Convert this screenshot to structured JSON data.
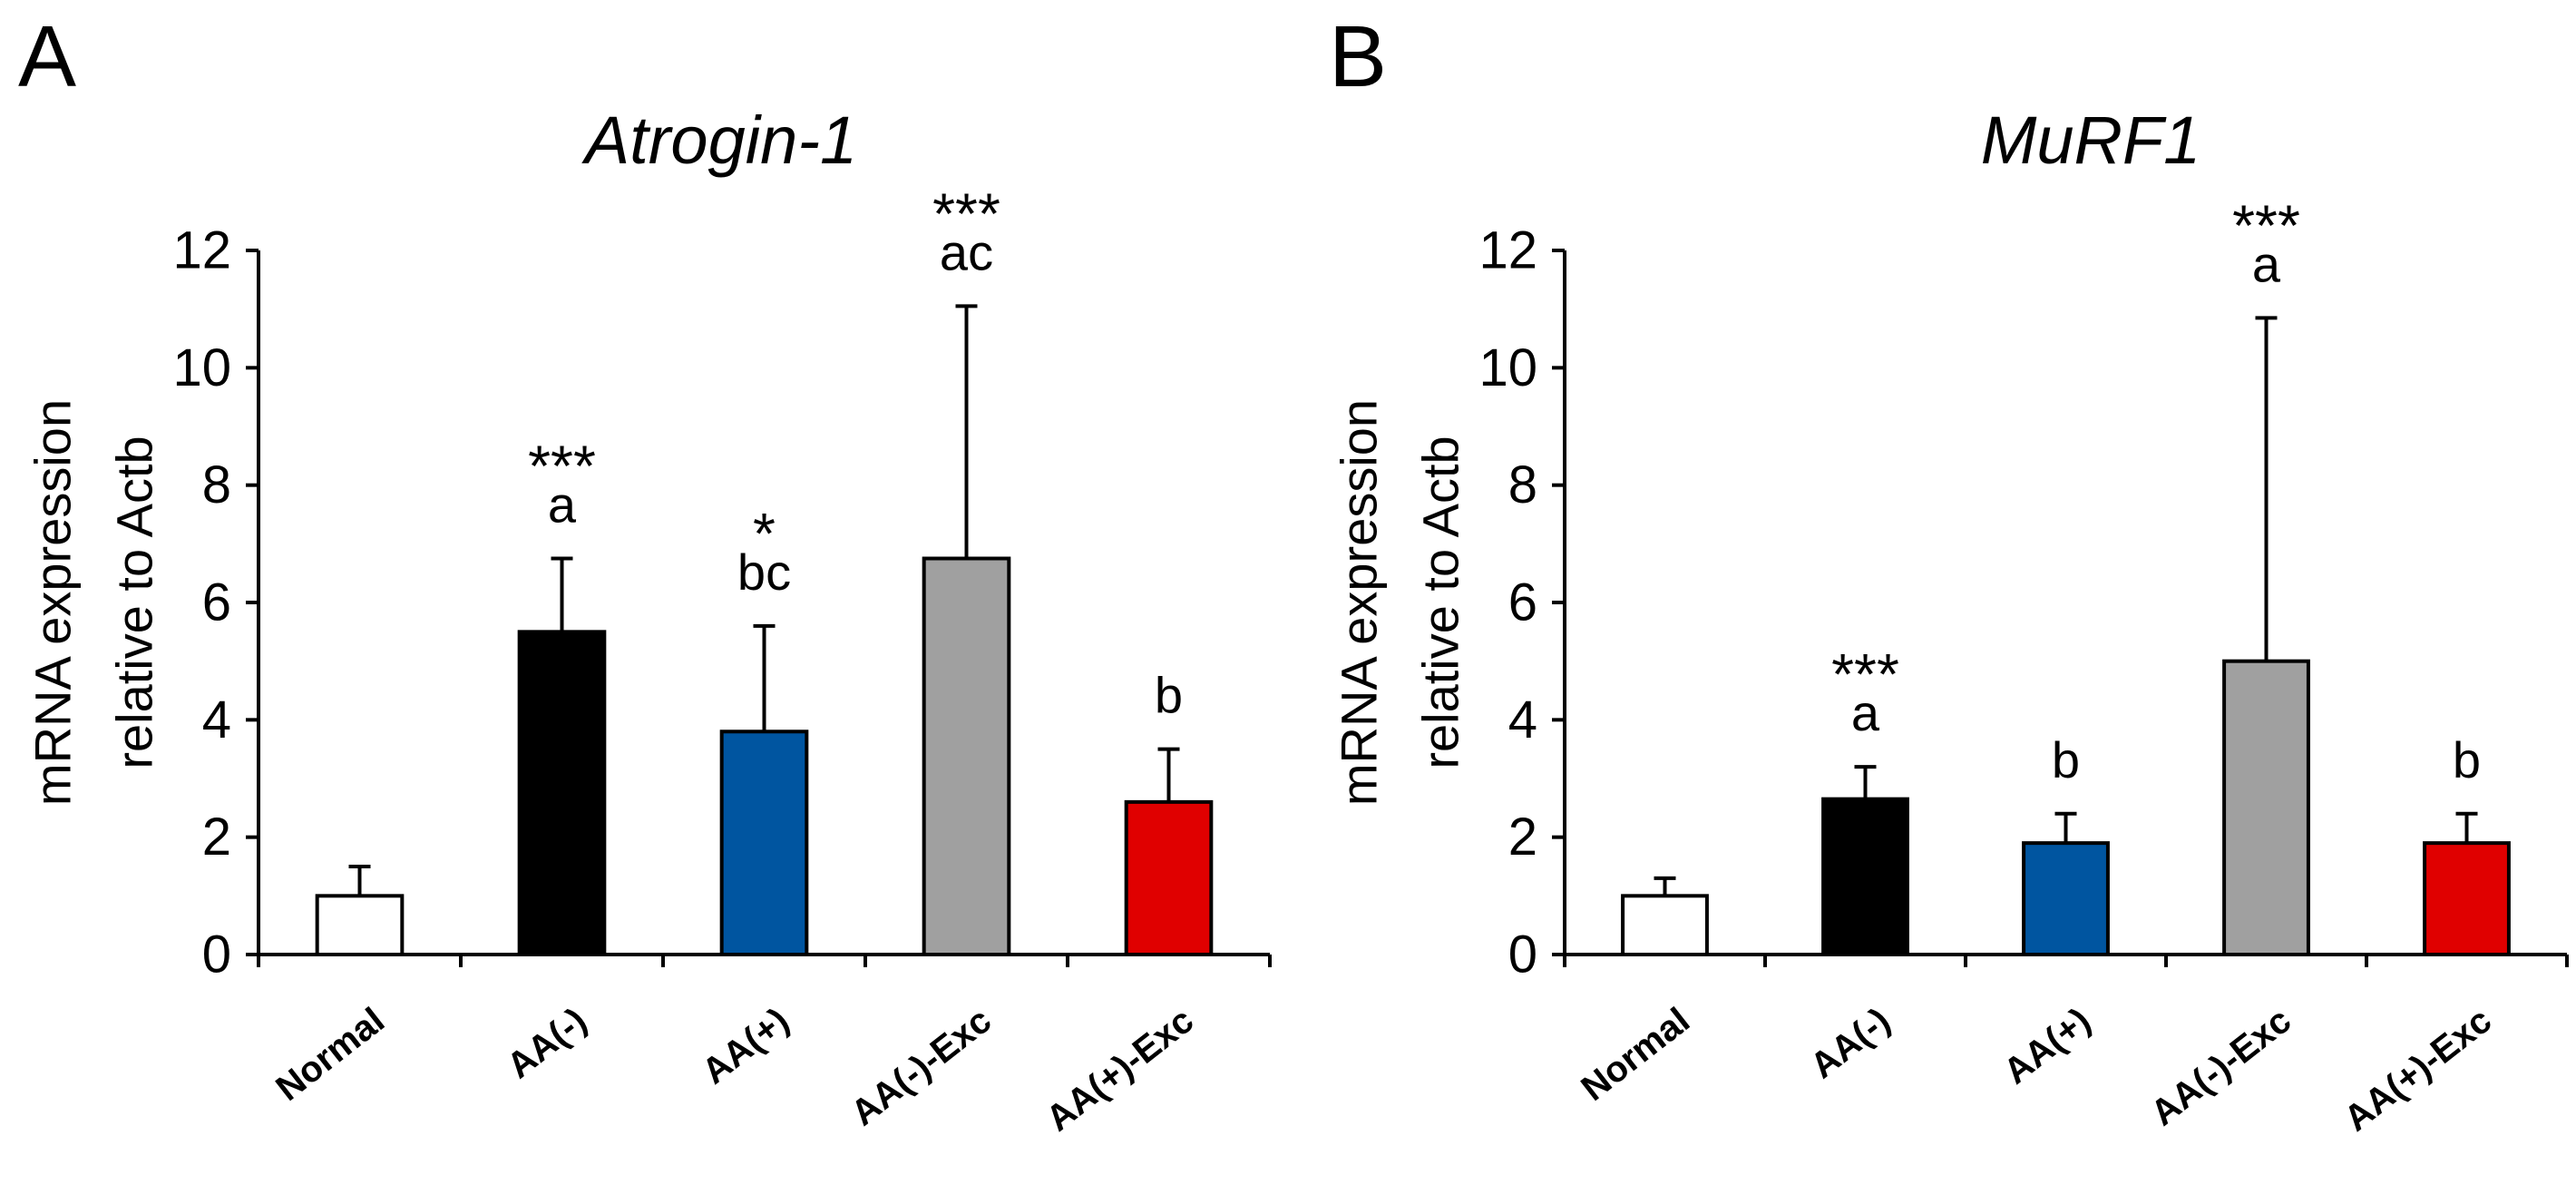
{
  "chart_data": [
    {
      "panel": "A",
      "type": "bar",
      "title": "Atrogin-1",
      "ylabel_lines": [
        "mRNA expression",
        "relative to Actb"
      ],
      "xlabel": "",
      "ylim": [
        0,
        12
      ],
      "yticks": [
        0,
        2,
        4,
        6,
        8,
        10,
        12
      ],
      "categories": [
        "Normal",
        "AA(-)",
        "AA(+)",
        "AA(-)-Exc",
        "AA(+)-Exc"
      ],
      "values": [
        1.0,
        5.5,
        3.8,
        6.75,
        2.6
      ],
      "errors": [
        0.5,
        1.25,
        1.8,
        4.3,
        0.9
      ],
      "colors": [
        "#ffffff",
        "#000000",
        "#0055a0",
        "#a0a0a0",
        "#e00000"
      ],
      "stars": [
        "",
        "***",
        "*",
        "***",
        ""
      ],
      "letters": [
        "",
        "a",
        "bc",
        "ac",
        "b"
      ],
      "legend": "none",
      "grid": false
    },
    {
      "panel": "B",
      "type": "bar",
      "title": "MuRF1",
      "ylabel_lines": [
        "mRNA expression",
        "relative to Actb"
      ],
      "xlabel": "",
      "ylim": [
        0,
        12
      ],
      "yticks": [
        0,
        2,
        4,
        6,
        8,
        10,
        12
      ],
      "categories": [
        "Normal",
        "AA(-)",
        "AA(+)",
        "AA(-)-Exc",
        "AA(+)-Exc"
      ],
      "values": [
        1.0,
        2.65,
        1.9,
        5.0,
        1.9
      ],
      "errors": [
        0.3,
        0.55,
        0.5,
        5.85,
        0.5
      ],
      "colors": [
        "#ffffff",
        "#000000",
        "#0055a0",
        "#a0a0a0",
        "#e00000"
      ],
      "stars": [
        "",
        "***",
        "",
        "***",
        ""
      ],
      "letters": [
        "",
        "a",
        "b",
        "a",
        "b"
      ],
      "legend": "none",
      "grid": false
    }
  ]
}
